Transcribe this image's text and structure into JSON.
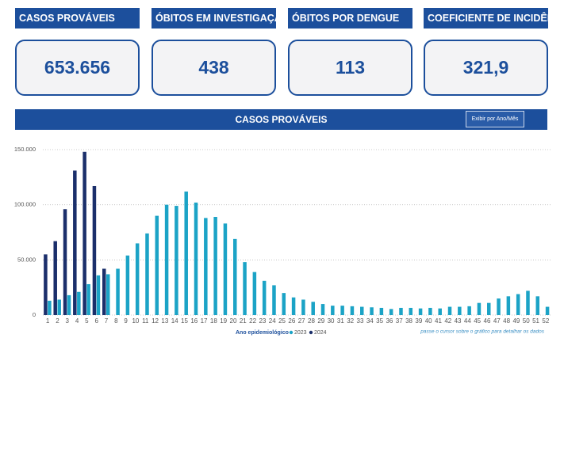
{
  "kpis": [
    {
      "title": "CASOS PROVÁVEIS",
      "value": "653.656"
    },
    {
      "title": "ÓBITOS EM INVESTIGAÇÃO",
      "value": "438"
    },
    {
      "title": "ÓBITOS POR DENGUE",
      "value": "113"
    },
    {
      "title": "COEFICIENTE DE INCIDÊNCIA",
      "value": "321,9"
    }
  ],
  "button": "Exibir por Ano/Mês",
  "hint": "passe o cursor sobre o gráfico para detalhar os dados",
  "chart_data": {
    "type": "bar",
    "title": "CASOS PROVÁVEIS",
    "legend_title": "Ano epidemiológico",
    "categories": [
      "1",
      "2",
      "3",
      "4",
      "5",
      "6",
      "7",
      "8",
      "9",
      "10",
      "11",
      "12",
      "13",
      "14",
      "15",
      "16",
      "17",
      "18",
      "19",
      "20",
      "21",
      "22",
      "23",
      "24",
      "25",
      "26",
      "27",
      "28",
      "29",
      "30",
      "31",
      "32",
      "33",
      "34",
      "35",
      "36",
      "37",
      "38",
      "39",
      "40",
      "41",
      "42",
      "43",
      "44",
      "45",
      "46",
      "47",
      "48",
      "49",
      "50",
      "51",
      "52"
    ],
    "series": [
      {
        "name": "2024",
        "color": "#1b2f6b",
        "values": [
          55000,
          67000,
          96000,
          131000,
          148000,
          117000,
          42000,
          null,
          null,
          null,
          null,
          null,
          null,
          null,
          null,
          null,
          null,
          null,
          null,
          null,
          null,
          null,
          null,
          null,
          null,
          null,
          null,
          null,
          null,
          null,
          null,
          null,
          null,
          null,
          null,
          null,
          null,
          null,
          null,
          null,
          null,
          null,
          null,
          null,
          null,
          null,
          null,
          null,
          null,
          null,
          null,
          null
        ]
      },
      {
        "name": "2023",
        "color": "#1ba3c6",
        "values": [
          13000,
          14000,
          18000,
          21000,
          28000,
          36000,
          37000,
          42000,
          54000,
          65000,
          74000,
          90000,
          100000,
          99000,
          112000,
          102000,
          88000,
          89000,
          83000,
          69000,
          48000,
          39000,
          31000,
          27000,
          20000,
          16000,
          14000,
          12000,
          10000,
          8500,
          8500,
          8000,
          7500,
          7000,
          6500,
          5500,
          6500,
          6500,
          6000,
          6500,
          6000,
          7500,
          7500,
          8000,
          11000,
          11000,
          15000,
          17000,
          19000,
          22000,
          17000,
          7500
        ]
      }
    ],
    "ylim": [
      0,
      150000
    ],
    "yticks": [
      0,
      {
        "value": 50000,
        "label": "50.000"
      },
      {
        "value": 100000,
        "label": "100.000"
      },
      {
        "value": 150000,
        "label": "150.000"
      }
    ],
    "grid": true
  }
}
